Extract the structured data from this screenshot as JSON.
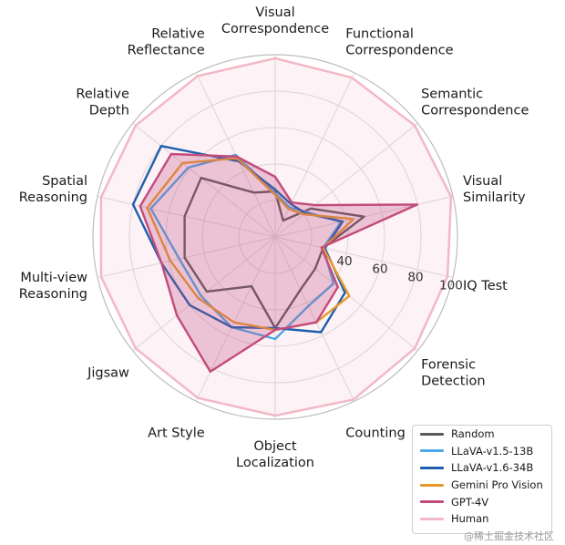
{
  "chart_data": {
    "type": "radar",
    "axes": [
      "Visual\nCorrespondence",
      "Functional\nCorrespondence",
      "Semantic\nCorrespondence",
      "Visual\nSimilarity",
      "IQ Test",
      "Forensic\nDetection",
      "Counting",
      "Object\nLocalization",
      "Art Style",
      "Jigsaw",
      "Multi-view\nReasoning",
      "Spatial\nReasoning",
      "Relative\nDepth",
      "Relative\nReflectance"
    ],
    "r_ticks": [
      40,
      60,
      80,
      100
    ],
    "r_range": [
      0,
      100
    ],
    "grid": true,
    "legend_position": "bottom-right",
    "series": [
      {
        "name": "Random",
        "color": "#5a5a5e",
        "fill": false,
        "values": [
          25,
          10,
          25,
          50,
          27,
          28,
          32,
          50,
          30,
          48,
          51,
          51,
          52,
          27
        ]
      },
      {
        "name": "LLaVA-v1.5-13B",
        "color": "#4ba8e8",
        "fill": false,
        "values": [
          24,
          18,
          22,
          37,
          27,
          41,
          42,
          56,
          55,
          52,
          54,
          70,
          61,
          50
        ]
      },
      {
        "name": "LLaVA-v1.6-34B",
        "color": "#1d5fae",
        "fill": false,
        "values": [
          26,
          20,
          21,
          38,
          28,
          49,
          58,
          50,
          55,
          60,
          64,
          80,
          80,
          46
        ]
      },
      {
        "name": "Gemini Pro Vision",
        "color": "#e69a2c",
        "fill": false,
        "values": [
          23,
          17,
          20,
          44,
          27,
          52,
          52,
          51,
          52,
          54,
          59,
          72,
          65,
          48
        ]
      },
      {
        "name": "GPT-4V",
        "color": "#c24b7c",
        "fill": true,
        "values": [
          33,
          21,
          28,
          80,
          26,
          44,
          52,
          51,
          82,
          69,
          64,
          76,
          73,
          49
        ]
      },
      {
        "name": "Human",
        "color": "#f2b8c6",
        "fill": true,
        "values": [
          98,
          97,
          98,
          99,
          97,
          98,
          99,
          98,
          98,
          98,
          98,
          98,
          98,
          98
        ]
      }
    ]
  },
  "watermark": "@稀土掘金技术社区"
}
